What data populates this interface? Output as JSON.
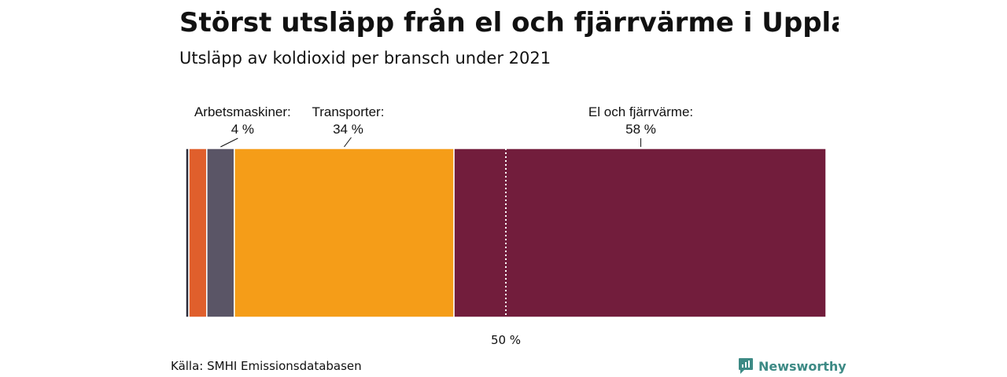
{
  "header": {
    "title": "Störst utsläpp från el och fjärrvärme i Upplands-Bro",
    "subtitle": "Utsläpp av koldioxid per bransch under 2021"
  },
  "footer": {
    "source": "Källa: SMHI Emissionsdatabasen",
    "brand": "Newsworthy",
    "brand_icon": "newsworthy-logo-icon",
    "brand_color": "#3d8a85"
  },
  "chart_data": {
    "type": "bar",
    "orientation": "horizontal-stacked-100",
    "unit": "%",
    "xlim": [
      0,
      100
    ],
    "segments": [
      {
        "label": "",
        "value": 0.5,
        "color": "#2b2b3a"
      },
      {
        "label": "",
        "value": 2.8,
        "color": "#e05f2c"
      },
      {
        "label": "Arbetsmaskiner:",
        "value_label": "4 %",
        "value": 4.3,
        "color": "#5a5566"
      },
      {
        "label": "Transporter:",
        "value_label": "34 %",
        "value": 34.3,
        "color": "#f59d18"
      },
      {
        "label": "El och fjärrvärme:",
        "value_label": "58 %",
        "value": 58.1,
        "color": "#721d3c"
      }
    ],
    "reference_line": {
      "value": 50,
      "label": "50 %"
    }
  }
}
